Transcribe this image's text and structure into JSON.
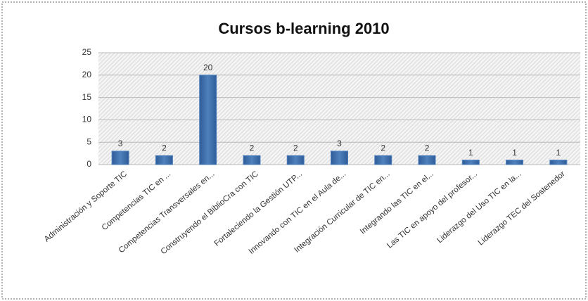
{
  "chart_data": {
    "type": "bar",
    "title": "Cursos b-learning 2010",
    "categories": [
      "Administración y Soporte TIC",
      "Competencias TIC en ...",
      "Competencias Transversales en...",
      "Construyendo el BiblioCra con TIC",
      "Fortaleciendo la Gestión UTP...",
      "Innovando con TIC en el Aula de...",
      "Integración Curricular de TIC en...",
      "Integrando las TIC en el...",
      "Las TIC en apoyo del profesor...",
      "Liderazgo del Uso TIC en la...",
      "Liderazgo TEC del Sostenedor"
    ],
    "values": [
      3,
      2,
      20,
      2,
      2,
      3,
      2,
      2,
      1,
      1,
      1
    ],
    "color": "#4f81bd",
    "ylim": [
      0,
      25
    ],
    "yticks": [
      0,
      5,
      10,
      15,
      20,
      25
    ],
    "grid": true
  }
}
